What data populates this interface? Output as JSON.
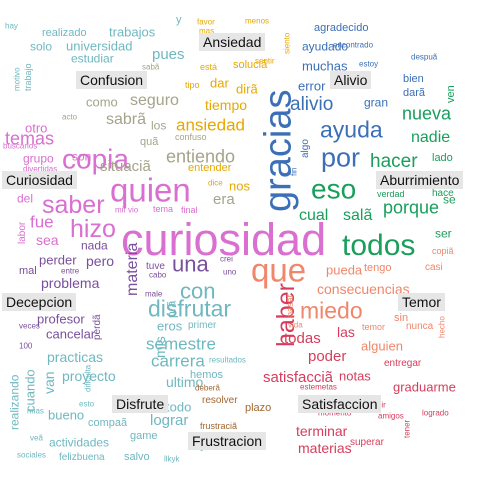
{
  "colors": {
    "Ansiedad": "#e6a800",
    "Confusion": "#a4a48a",
    "Alivio": "#3b6fb6",
    "Curiosidad": "#d96fd0",
    "Aburrimiento": "#1a9e5c",
    "Decepcion": "#7a4f9b",
    "Temor": "#f0866a",
    "Disfrute": "#6fb8c0",
    "Satisfaccion": "#d63d5c",
    "Frustracion": "#a06832"
  },
  "category_labels": [
    "Ansiedad",
    "Confusion",
    "Alivio",
    "Curiosidad",
    "Aburrimiento",
    "Decepcion",
    "Temor",
    "Disfrute",
    "Satisfaccion",
    "Frustracion"
  ],
  "words": [
    {
      "text": "hay",
      "c": "Disfrute"
    },
    {
      "text": "realizado",
      "c": "Disfrute"
    },
    {
      "text": "trabajos",
      "c": "Disfrute"
    },
    {
      "text": "y",
      "c": "Disfrute"
    },
    {
      "text": "favor",
      "c": "Ansiedad"
    },
    {
      "text": "mas",
      "c": "Ansiedad"
    },
    {
      "text": "menos",
      "c": "Ansiedad"
    },
    {
      "text": "agradecido",
      "c": "Alivio"
    },
    {
      "text": "solo",
      "c": "Disfrute"
    },
    {
      "text": "universidad",
      "c": "Disfrute"
    },
    {
      "text": "estudiar",
      "c": "Disfrute"
    },
    {
      "text": "pues",
      "c": "Disfrute"
    },
    {
      "text": "siento",
      "c": "Ansiedad"
    },
    {
      "text": "ayudado",
      "c": "Alivio"
    },
    {
      "text": "encontrado",
      "c": "Alivio"
    },
    {
      "text": "despuã",
      "c": "Alivio"
    },
    {
      "text": "motivo",
      "c": "Disfrute"
    },
    {
      "text": "trabajo",
      "c": "Disfrute"
    },
    {
      "text": "sabã",
      "c": "Confusion"
    },
    {
      "text": "está",
      "c": "Ansiedad"
    },
    {
      "text": "soluciã",
      "c": "Ansiedad"
    },
    {
      "text": "sentir",
      "c": "Ansiedad"
    },
    {
      "text": "muchas",
      "c": "Alivio"
    },
    {
      "text": "estoy",
      "c": "Alivio"
    },
    {
      "text": "bien",
      "c": "Alivio"
    },
    {
      "text": "dar",
      "c": "Ansiedad"
    },
    {
      "text": "tipo",
      "c": "Ansiedad"
    },
    {
      "text": "error",
      "c": "Alivio"
    },
    {
      "text": "dirã",
      "c": "Ansiedad"
    },
    {
      "text": "darã",
      "c": "Alivio"
    },
    {
      "text": "ven",
      "c": "Aburrimiento"
    },
    {
      "text": "como",
      "c": "Confusion"
    },
    {
      "text": "seguro",
      "c": "Confusion"
    },
    {
      "text": "tiempo",
      "c": "Ansiedad"
    },
    {
      "text": "alivio",
      "c": "Alivio"
    },
    {
      "text": "gran",
      "c": "Alivio"
    },
    {
      "text": "temas",
      "c": "Curiosidad"
    },
    {
      "text": "acto",
      "c": "Confusion"
    },
    {
      "text": "sabrã",
      "c": "Confusion"
    },
    {
      "text": "ayuda",
      "c": "Alivio"
    },
    {
      "text": "nueva",
      "c": "Aburrimiento"
    },
    {
      "text": "otro",
      "c": "Curiosidad"
    },
    {
      "text": "los",
      "c": "Confusion"
    },
    {
      "text": "ansiedad",
      "c": "Ansiedad"
    },
    {
      "text": "buscarlos",
      "c": "Curiosidad"
    },
    {
      "text": "quã",
      "c": "Confusion"
    },
    {
      "text": "confuso",
      "c": "Confusion"
    },
    {
      "text": "nadie",
      "c": "Aburrimiento"
    },
    {
      "text": "copia",
      "c": "Curiosidad"
    },
    {
      "text": "gracias",
      "c": "Alivio"
    },
    {
      "text": "por",
      "c": "Alivio"
    },
    {
      "text": "grupo",
      "c": "Curiosidad"
    },
    {
      "text": "entiendo",
      "c": "Confusion"
    },
    {
      "text": "algo",
      "c": "Alivio"
    },
    {
      "text": "lado",
      "c": "Aburrimiento"
    },
    {
      "text": "son",
      "c": "Curiosidad"
    },
    {
      "text": "situaciã",
      "c": "Confusion"
    },
    {
      "text": "hacer",
      "c": "Aburrimiento"
    },
    {
      "text": "divertidas",
      "c": "Curiosidad"
    },
    {
      "text": "entender",
      "c": "Ansiedad"
    },
    {
      "text": "fin",
      "c": "Alivio"
    },
    {
      "text": "quien",
      "c": "Curiosidad"
    },
    {
      "text": "dice",
      "c": "Ansiedad"
    },
    {
      "text": "nos",
      "c": "Ansiedad"
    },
    {
      "text": "eso",
      "c": "Aburrimiento"
    },
    {
      "text": "verdad",
      "c": "Aburrimiento"
    },
    {
      "text": "hace",
      "c": "Aburrimiento"
    },
    {
      "text": "del",
      "c": "Curiosidad"
    },
    {
      "text": "saber",
      "c": "Curiosidad"
    },
    {
      "text": "era",
      "c": "Confusion"
    },
    {
      "text": "porque",
      "c": "Aburrimiento"
    },
    {
      "text": "se",
      "c": "Aburrimiento"
    },
    {
      "text": "labor",
      "c": "Curiosidad"
    },
    {
      "text": "fue",
      "c": "Curiosidad"
    },
    {
      "text": "mil",
      "c": "Curiosidad"
    },
    {
      "text": "vio",
      "c": "Curiosidad"
    },
    {
      "text": "tema",
      "c": "Curiosidad"
    },
    {
      "text": "final",
      "c": "Curiosidad"
    },
    {
      "text": "cual",
      "c": "Aburrimiento"
    },
    {
      "text": "salã",
      "c": "Aburrimiento"
    },
    {
      "text": "hizo",
      "c": "Curiosidad"
    },
    {
      "text": "sea",
      "c": "Curiosidad"
    },
    {
      "text": "curiosidad",
      "c": "Curiosidad"
    },
    {
      "text": "todos",
      "c": "Aburrimiento"
    },
    {
      "text": "ser",
      "c": "Aburrimiento"
    },
    {
      "text": "nada",
      "c": "Decepcion"
    },
    {
      "text": "perder",
      "c": "Decepcion"
    },
    {
      "text": "tuve",
      "c": "Decepcion"
    },
    {
      "text": "una",
      "c": "Decepcion"
    },
    {
      "text": "crei",
      "c": "Decepcion"
    },
    {
      "text": "que",
      "c": "Temor"
    },
    {
      "text": "copiã",
      "c": "Temor"
    },
    {
      "text": "pero",
      "c": "Decepcion"
    },
    {
      "text": "cabo",
      "c": "Decepcion"
    },
    {
      "text": "uno",
      "c": "Decepcion"
    },
    {
      "text": "tengo",
      "c": "Temor"
    },
    {
      "text": "pueda",
      "c": "Temor"
    },
    {
      "text": "casi",
      "c": "Temor"
    },
    {
      "text": "mal",
      "c": "Decepcion"
    },
    {
      "text": "entre",
      "c": "Decepcion"
    },
    {
      "text": "materia",
      "c": "Decepcion"
    },
    {
      "text": "con",
      "c": "Disfrute"
    },
    {
      "text": "problema",
      "c": "Decepcion"
    },
    {
      "text": "consecuencias",
      "c": "Temor"
    },
    {
      "text": "male",
      "c": "Decepcion"
    },
    {
      "text": "prã",
      "c": "Disfrute"
    },
    {
      "text": "disfrutar",
      "c": "Disfrute"
    },
    {
      "text": "haber",
      "c": "Satisfaccion"
    },
    {
      "text": "miedo",
      "c": "Temor"
    },
    {
      "text": "pasar",
      "c": "Temor"
    },
    {
      "text": "profesor",
      "c": "Decepcion"
    },
    {
      "text": "perdã",
      "c": "Decepcion"
    },
    {
      "text": "eros",
      "c": "Disfrute"
    },
    {
      "text": "primer",
      "c": "Disfrute"
    },
    {
      "text": "vida",
      "c": "Temor"
    },
    {
      "text": "sin",
      "c": "Temor"
    },
    {
      "text": "hecho",
      "c": "Temor"
    },
    {
      "text": "veces",
      "c": "Decepcion"
    },
    {
      "text": "mis",
      "c": "Disfrute"
    },
    {
      "text": "cancelar",
      "c": "Decepcion"
    },
    {
      "text": "todas",
      "c": "Satisfaccion"
    },
    {
      "text": "las",
      "c": "Satisfaccion"
    },
    {
      "text": "temor",
      "c": "Temor"
    },
    {
      "text": "nunca",
      "c": "Temor"
    },
    {
      "text": "100",
      "c": "Decepcion"
    },
    {
      "text": "semestre",
      "c": "Disfrute"
    },
    {
      "text": "alguien",
      "c": "Temor"
    },
    {
      "text": "practicas",
      "c": "Disfrute"
    },
    {
      "text": "carrera",
      "c": "Disfrute"
    },
    {
      "text": "resultados",
      "c": "Disfrute"
    },
    {
      "text": "poder",
      "c": "Satisfaccion"
    },
    {
      "text": "entregar",
      "c": "Satisfaccion"
    },
    {
      "text": "van",
      "c": "Disfrute"
    },
    {
      "text": "proyecto",
      "c": "Disfrute"
    },
    {
      "text": "hemos",
      "c": "Disfrute"
    },
    {
      "text": "satisfacciã",
      "c": "Satisfaccion"
    },
    {
      "text": "notas",
      "c": "Satisfaccion"
    },
    {
      "text": "cuando",
      "c": "Disfrute"
    },
    {
      "text": "dificulta",
      "c": "Disfrute"
    },
    {
      "text": "ultimo",
      "c": "Disfrute"
    },
    {
      "text": "deberã",
      "c": "Frustracion"
    },
    {
      "text": "estemetas",
      "c": "Satisfaccion"
    },
    {
      "text": "graduarme",
      "c": "Satisfaccion"
    },
    {
      "text": "realizando",
      "c": "Disfrute"
    },
    {
      "text": "mias",
      "c": "Disfrute"
    },
    {
      "text": "esto",
      "c": "Disfrute"
    },
    {
      "text": "todo",
      "c": "Disfrute"
    },
    {
      "text": "resolver",
      "c": "Frustracion"
    },
    {
      "text": "plazo",
      "c": "Frustracion"
    },
    {
      "text": "momento",
      "c": "Satisfaccion"
    },
    {
      "text": "amigos",
      "c": "Satisfaccion"
    },
    {
      "text": "logrado",
      "c": "Satisfaccion"
    },
    {
      "text": "bueno",
      "c": "Disfrute"
    },
    {
      "text": "compaã",
      "c": "Disfrute"
    },
    {
      "text": "lograr",
      "c": "Disfrute"
    },
    {
      "text": "cumplir",
      "c": "Satisfaccion"
    },
    {
      "text": "veã",
      "c": "Disfrute"
    },
    {
      "text": "actividades",
      "c": "Disfrute"
    },
    {
      "text": "game",
      "c": "Disfrute"
    },
    {
      "text": "frustraciã",
      "c": "Frustracion"
    },
    {
      "text": "terminar",
      "c": "Satisfaccion"
    },
    {
      "text": "superar",
      "c": "Satisfaccion"
    },
    {
      "text": "tener",
      "c": "Satisfaccion"
    },
    {
      "text": "sociales",
      "c": "Disfrute"
    },
    {
      "text": "felizbuena",
      "c": "Disfrute"
    },
    {
      "text": "salvo",
      "c": "Disfrute"
    },
    {
      "text": "jam",
      "c": "Disfrute"
    },
    {
      "text": "llkyk",
      "c": "Disfrute"
    },
    {
      "text": "materias",
      "c": "Satisfaccion"
    }
  ]
}
